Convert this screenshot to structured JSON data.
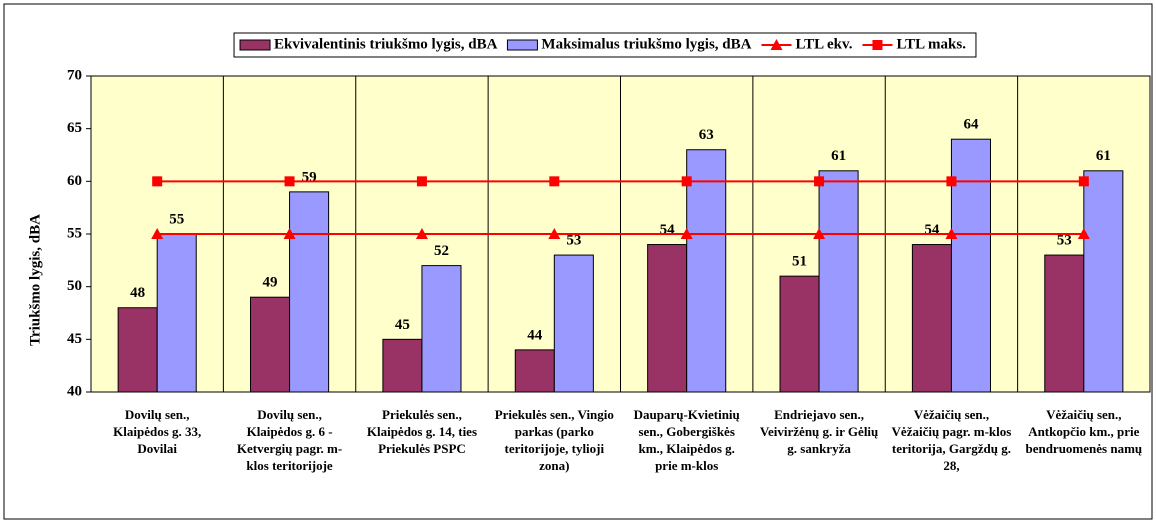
{
  "chart_data": {
    "type": "bar",
    "y_label": "Triukšmo lygis, dBA",
    "categories": [
      "Dovilų sen., Klaipėdos g. 33, Dovilai",
      "Dovilų sen., Klaipėdos g. 6 - Ketvergių pagr. m-klos teritorijoje",
      "Priekulės sen., Klaipėdos g. 14, ties Priekulės PSPC",
      "Priekulės sen., Vingio parkas (parko teritorijoje, tylioji zona)",
      "Dauparų-Kvietinių sen., Gobergiškės km., Klaipėdos g. prie m-klos",
      "Endriejavo sen., Veiviržėnų g. ir Gėlių g. sankryža",
      "Vėžaičių sen., Vėžaičių pagr. m-klos teritorija, Gargždų g. 28,",
      "Vėžaičių sen., Antkopčio km., prie bendruomenės namų"
    ],
    "series": [
      {
        "name": "Ekvivalentinis triukšmo lygis, dBA",
        "type": "bar",
        "color": "#993366",
        "values": [
          48,
          49,
          45,
          44,
          54,
          51,
          54,
          53
        ]
      },
      {
        "name": "Maksimalus triukšmo lygis, dBA",
        "type": "bar",
        "color": "#9999ff",
        "values": [
          55,
          59,
          52,
          53,
          63,
          61,
          64,
          61
        ]
      },
      {
        "name": "LTL ekv.",
        "type": "line",
        "marker": "triangle",
        "color": "#ff0000",
        "values": [
          55,
          55,
          55,
          55,
          55,
          55,
          55,
          55
        ]
      },
      {
        "name": "LTL maks.",
        "type": "line",
        "marker": "square",
        "color": "#ff0000",
        "values": [
          60,
          60,
          60,
          60,
          60,
          60,
          60,
          60
        ]
      }
    ],
    "ylim": [
      40,
      70
    ],
    "yticks": [
      40,
      45,
      50,
      55,
      60,
      65,
      70
    ],
    "legend": "top",
    "plot_background": "#ffffcc"
  }
}
